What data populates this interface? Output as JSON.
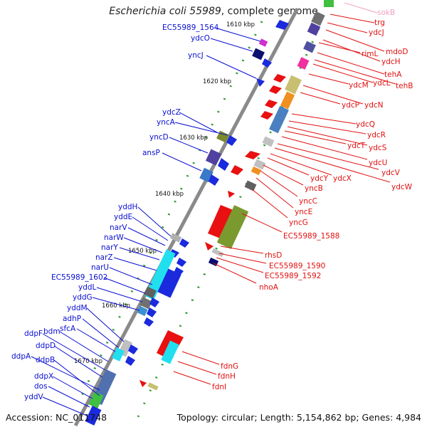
{
  "title": {
    "organism": "Escherichia coli 55989",
    "suffix": ", complete genome"
  },
  "footer": {
    "accession": "Accession: NC_011748",
    "topology": "Topology: circular; Length: 5,154,862 bp; Genes: 4,984"
  },
  "colors": {
    "forward_label": "#0a0fd0",
    "reverse_label": "#e01010",
    "faded_label": "#f0a0c0",
    "backbone": "#888888"
  },
  "ticks": [
    "1610 kbp",
    "1620 kbp",
    "1630 kbp",
    "1640 kbp",
    "1650 kbp",
    "1660 kbp",
    "1670 kbp"
  ],
  "left_genes": [
    "EC55989_1564",
    "ydcO",
    "yncJ",
    "ydcZ",
    "yncA",
    "yncD",
    "ansP",
    "yddH",
    "yddE",
    "narV",
    "narW",
    "narY",
    "narZ",
    "narU",
    "EC55989_1602",
    "yddL",
    "yddG",
    "yddM",
    "adhP",
    "sfcA",
    "bdm",
    "ddpF",
    "ddpD",
    "ddpA",
    "ddpB",
    "ddpX",
    "dos",
    "yddV"
  ],
  "right_genes": [
    "sokB",
    "trg",
    "ydcJ",
    "mdoD",
    "rimL",
    "ydcH",
    "tehA",
    "ydcM",
    "ydcL",
    "tehB",
    "ydcP",
    "ydcN",
    "ydcQ",
    "ydcR",
    "ydcT",
    "ydcS",
    "ydcU",
    "ydcV",
    "ydcY",
    "ydcX",
    "ydcW",
    "yncB",
    "yncC",
    "yncE",
    "yncG",
    "EC55989_1588",
    "rhsD",
    "EC55989_1590",
    "EC55989_1592",
    "nhoA",
    "fdnG",
    "fdnH",
    "fdnI"
  ]
}
